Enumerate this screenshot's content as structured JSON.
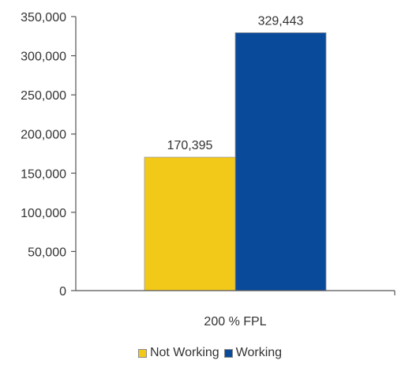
{
  "chart_data": {
    "type": "bar",
    "categories": [
      "200 % FPL"
    ],
    "series": [
      {
        "name": "Not Working",
        "values": [
          170395
        ],
        "labels": [
          "170,395"
        ],
        "color": "#f3c919"
      },
      {
        "name": "Working",
        "values": [
          329443
        ],
        "labels": [
          "329,443"
        ],
        "color": "#0a4a9a"
      }
    ],
    "ylim": [
      0,
      350000
    ],
    "yticks": [
      0,
      50000,
      100000,
      150000,
      200000,
      250000,
      300000,
      350000
    ],
    "ytick_labels": [
      "0",
      "50,000",
      "100,000",
      "150,000",
      "200,000",
      "250,000",
      "300,000",
      "350,000"
    ],
    "grid": false,
    "legend_position": "bottom"
  }
}
